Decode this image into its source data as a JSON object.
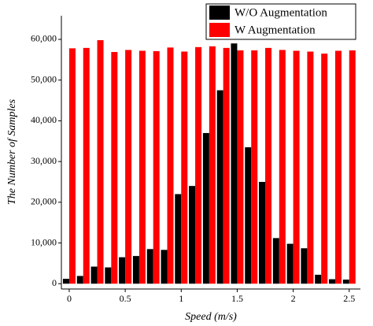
{
  "chart_data": {
    "type": "bar",
    "x_label": "Speed (m/s)",
    "y_label": "The Number of Samples",
    "x": [
      0,
      0.125,
      0.25,
      0.375,
      0.5,
      0.625,
      0.75,
      0.875,
      1,
      1.125,
      1.25,
      1.375,
      1.5,
      1.625,
      1.75,
      1.875,
      2,
      2.125,
      2.25,
      2.375,
      2.5
    ],
    "series": [
      {
        "name": "W/O Augmentation",
        "color": "#000000",
        "values": [
          1200,
          1900,
          4200,
          4000,
          6500,
          6800,
          8500,
          8300,
          22000,
          24000,
          37000,
          47500,
          59000,
          33500,
          25000,
          11200,
          9800,
          8700,
          2200,
          1100,
          1000
        ]
      },
      {
        "name": "W Augmentation",
        "color": "#ff0000",
        "values": [
          57800,
          57900,
          59800,
          56900,
          57400,
          57200,
          57100,
          58000,
          57000,
          58100,
          58300,
          57900,
          57300,
          57300,
          57900,
          57400,
          57200,
          57000,
          56500,
          57200,
          57300
        ]
      }
    ],
    "xlim": [
      -0.07,
      2.6
    ],
    "xticks": [
      0,
      0.5,
      1,
      1.5,
      2,
      2.5
    ],
    "ylim": [
      -1300,
      65800
    ],
    "yticks": [
      0,
      {
        "value": 10000,
        "label": "10,000"
      },
      {
        "value": 20000,
        "label": "20,000"
      },
      {
        "value": 30000,
        "label": "30,000"
      },
      {
        "value": 40000,
        "label": "40,000"
      },
      {
        "value": 50000,
        "label": "50,000"
      },
      {
        "value": 60000,
        "label": "60,000"
      }
    ],
    "legend": "top-right"
  }
}
